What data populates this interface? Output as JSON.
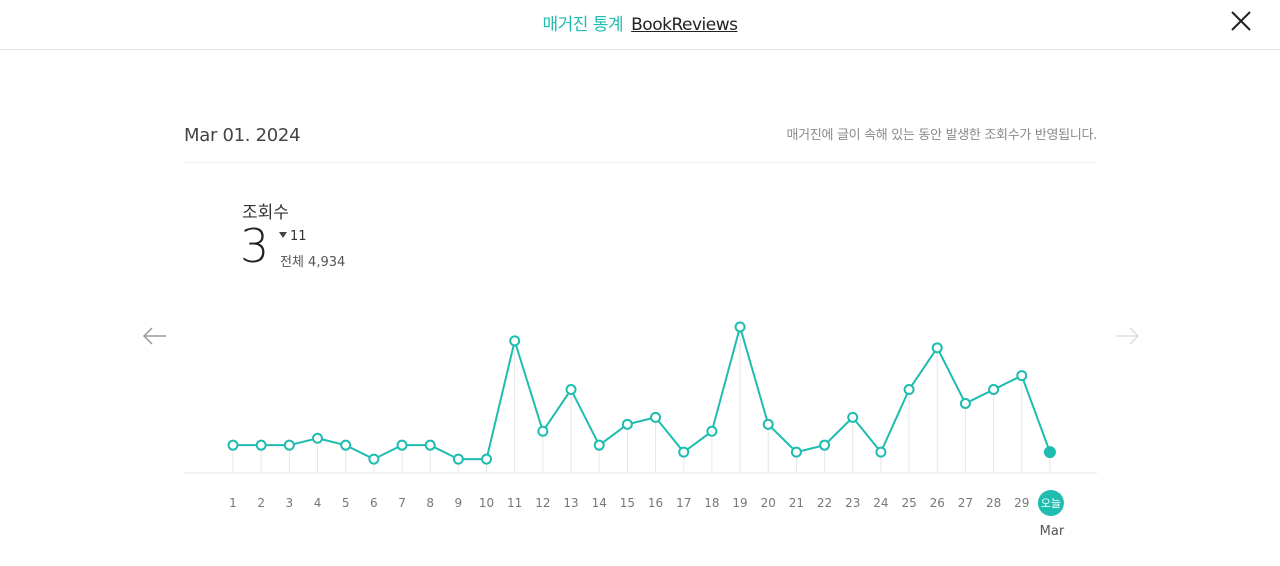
{
  "header": {
    "title_accent": "매거진 통계",
    "title_link": "BookReviews"
  },
  "summary": {
    "date": "Mar 01. 2024",
    "note": "매거진에 글이 속해 있는 동안 발생한 조회수가 반영됩니다.",
    "metric_label": "조회수",
    "metric_value": "3",
    "delta": "11",
    "total": "전체 4,934"
  },
  "colors": {
    "accent": "#1fbcb0",
    "grid": "#e6e6e6"
  },
  "icons": {
    "close": "close-icon",
    "prev": "arrow-left-icon",
    "next": "arrow-right-icon"
  },
  "chart_data": {
    "type": "line",
    "x": [
      "1",
      "2",
      "3",
      "4",
      "5",
      "6",
      "7",
      "8",
      "9",
      "10",
      "11",
      "12",
      "13",
      "14",
      "15",
      "16",
      "17",
      "18",
      "19",
      "20",
      "21",
      "22",
      "23",
      "24",
      "25",
      "26",
      "27",
      "28",
      "29",
      "오늘"
    ],
    "month_label": "Mar",
    "series": [
      {
        "values": [
          4,
          4,
          4,
          5,
          4,
          2,
          4,
          4,
          2,
          2,
          19,
          6,
          12,
          4,
          7,
          8,
          3,
          6,
          21,
          7,
          3,
          4,
          8,
          3,
          12,
          18,
          10,
          12,
          14,
          3
        ]
      }
    ],
    "ylim": [
      0,
      22
    ],
    "grid": "vertical",
    "highlight_last": true
  }
}
